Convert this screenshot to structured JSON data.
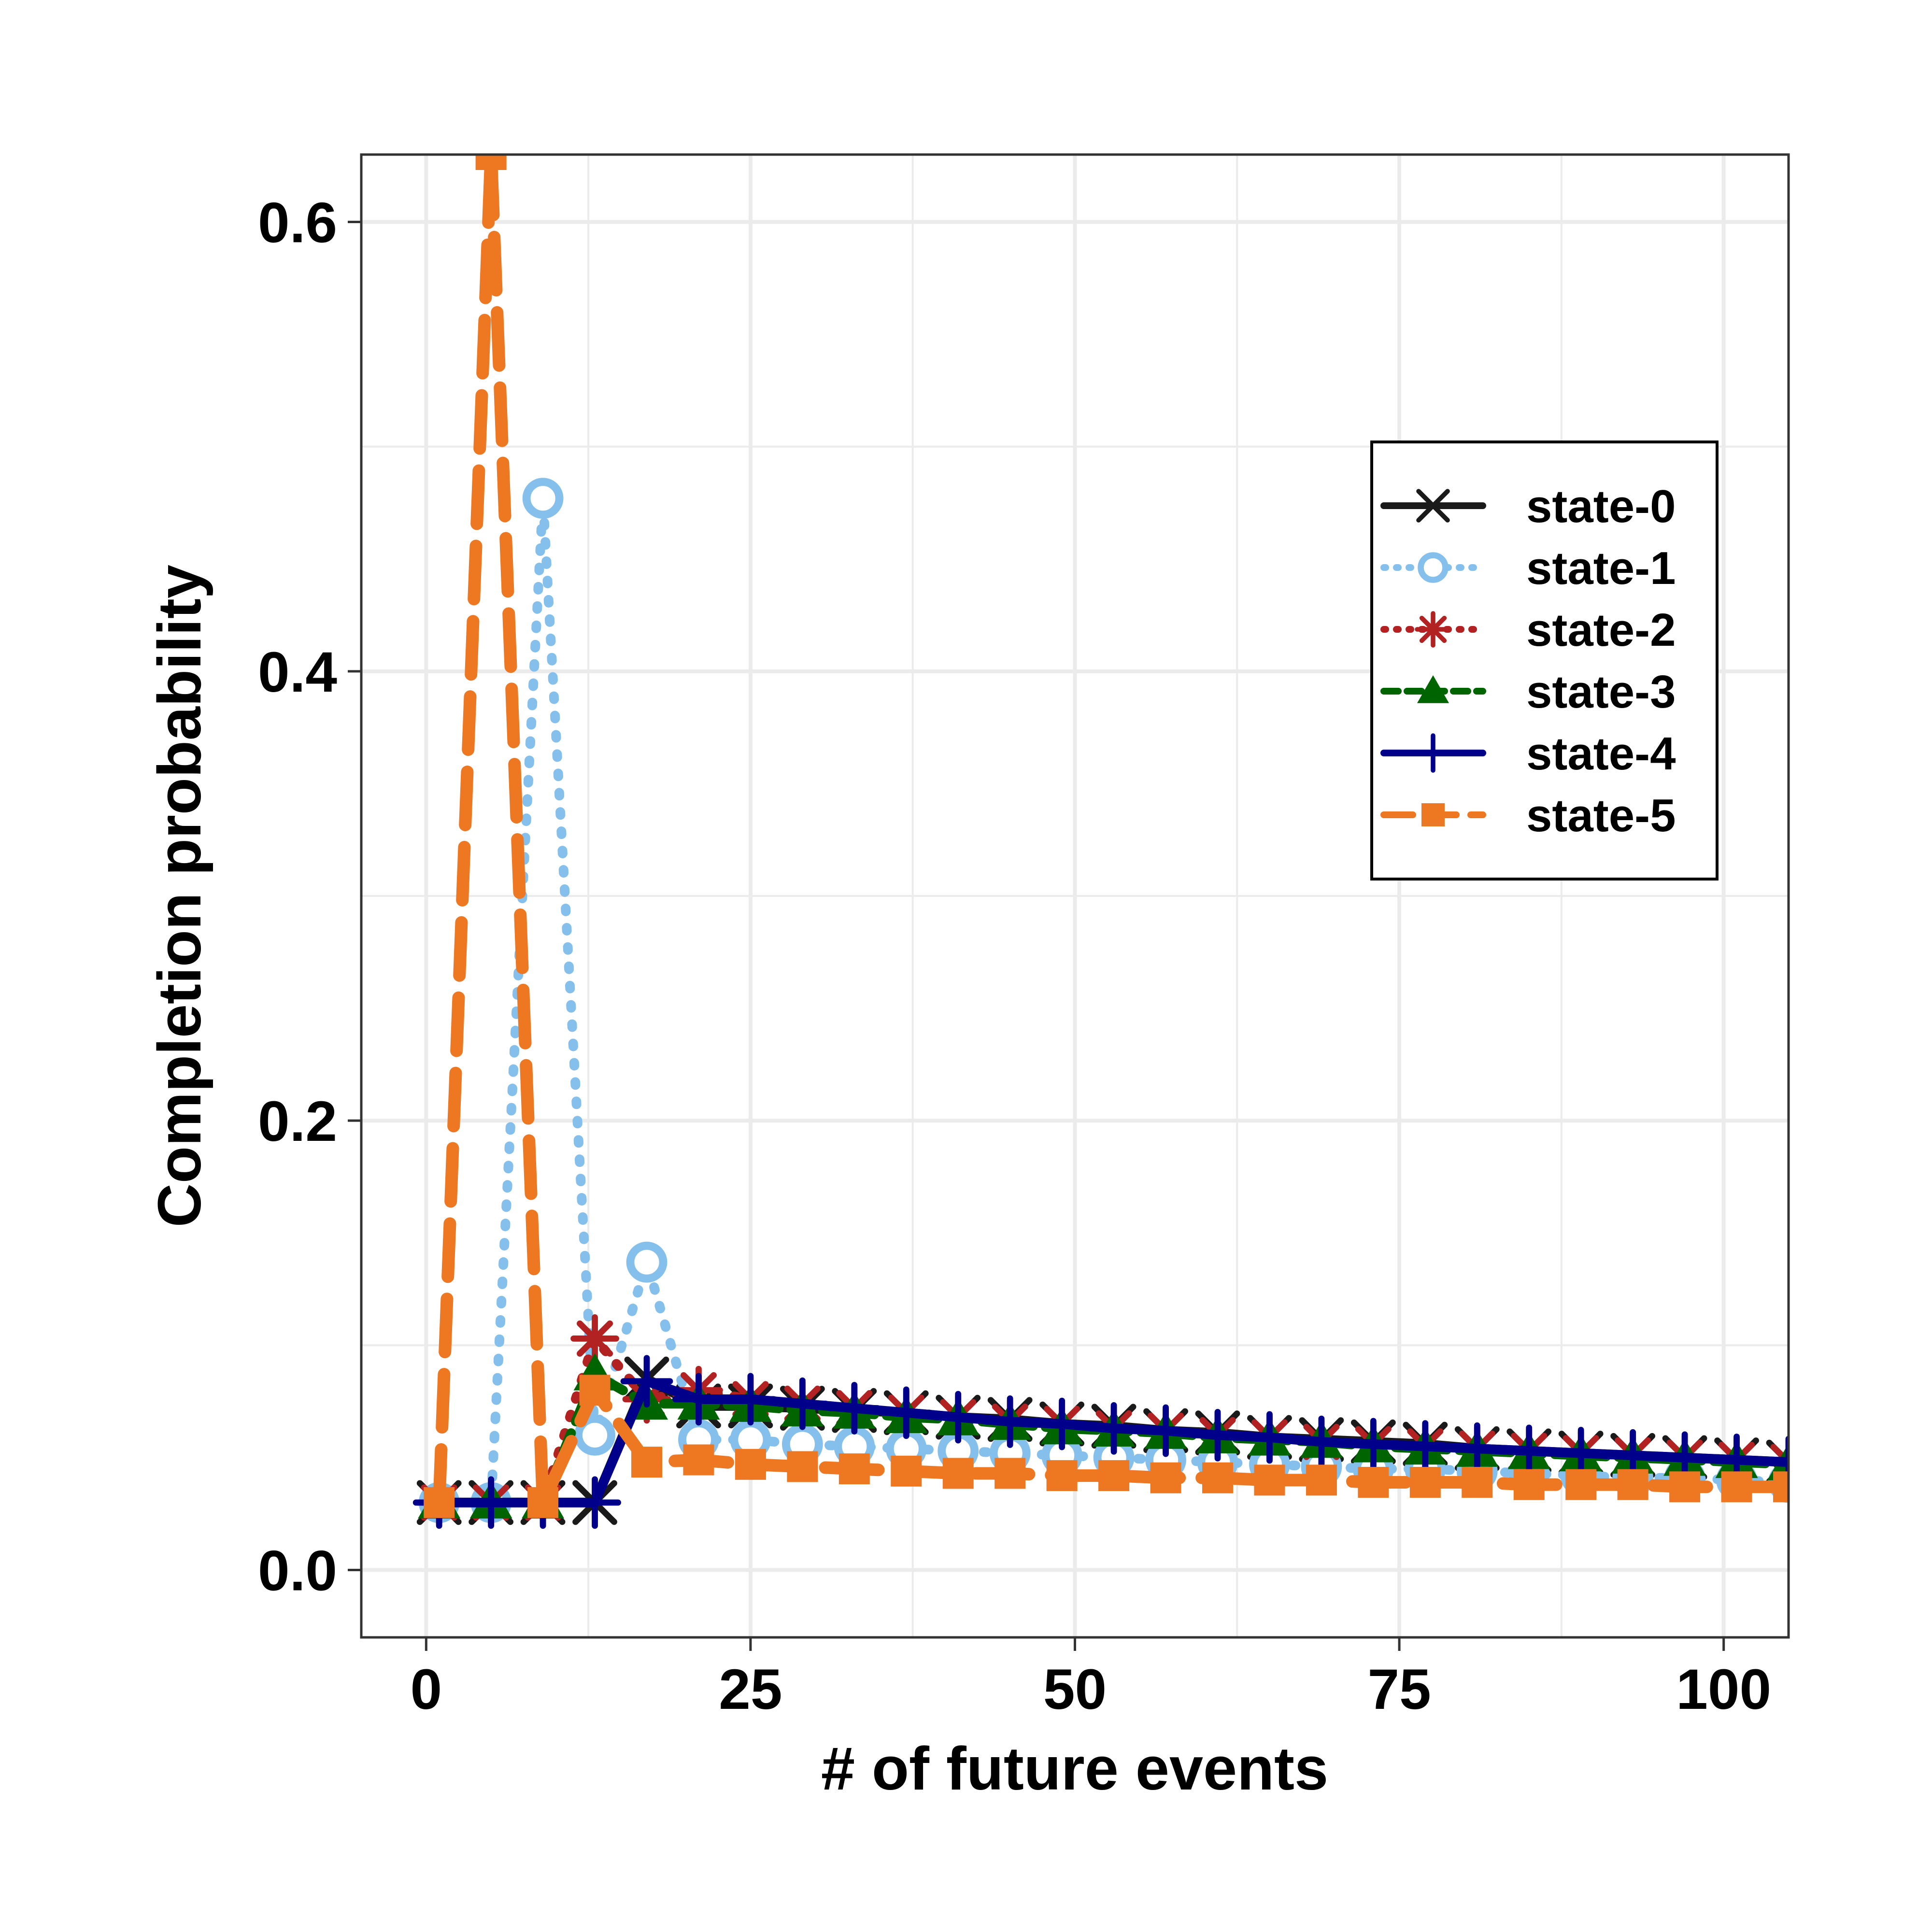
{
  "chart_data": {
    "type": "line",
    "title": "",
    "xlabel": "# of future events",
    "ylabel": "Completion probability",
    "xlim": [
      -5,
      105
    ],
    "ylim": [
      -0.03,
      0.63
    ],
    "xticks": [
      0,
      25,
      50,
      75,
      100
    ],
    "yticks": [
      0.0,
      0.2,
      0.4,
      0.6
    ],
    "xtick_labels": [
      "0",
      "25",
      "50",
      "75",
      "100"
    ],
    "ytick_labels": [
      "0.0",
      "0.2",
      "0.4",
      "0.6"
    ],
    "grid": true,
    "legend_position": "top-right",
    "x": [
      1,
      5,
      9,
      13,
      17,
      21,
      25,
      29,
      33,
      37,
      41,
      45,
      49,
      53,
      57,
      61,
      65,
      69,
      73,
      77,
      81,
      85,
      89,
      93,
      97,
      101,
      105
    ],
    "series": [
      {
        "name": "state-0",
        "color": "#1a1a1a",
        "dash": "solid",
        "marker": "x",
        "values": [
          0.03,
          0.03,
          0.03,
          0.03,
          0.085,
          0.073,
          0.073,
          0.072,
          0.071,
          0.07,
          0.068,
          0.067,
          0.065,
          0.064,
          0.062,
          0.061,
          0.059,
          0.058,
          0.057,
          0.056,
          0.054,
          0.053,
          0.052,
          0.051,
          0.05,
          0.049,
          0.048
        ]
      },
      {
        "name": "state-1",
        "color": "#85c0ec",
        "dash": "dotted",
        "marker": "open-circle",
        "values": [
          0.03,
          0.03,
          0.477,
          0.06,
          0.137,
          0.058,
          0.058,
          0.056,
          0.055,
          0.054,
          0.053,
          0.052,
          0.051,
          0.05,
          0.049,
          0.048,
          0.047,
          0.046,
          0.045,
          0.045,
          0.044,
          0.043,
          0.042,
          0.041,
          0.041,
          0.04,
          0.039
        ]
      },
      {
        "name": "state-2",
        "color": "#b22222",
        "dash": "dotted",
        "marker": "asterisk",
        "values": [
          0.03,
          0.03,
          0.03,
          0.103,
          0.076,
          0.08,
          0.076,
          0.074,
          0.072,
          0.07,
          0.068,
          0.066,
          0.065,
          0.063,
          0.062,
          0.06,
          0.059,
          0.057,
          0.056,
          0.055,
          0.054,
          0.053,
          0.052,
          0.051,
          0.05,
          0.049,
          0.048
        ]
      },
      {
        "name": "state-3",
        "color": "#006400",
        "dash": "dashed",
        "marker": "triangle",
        "values": [
          0.03,
          0.03,
          0.03,
          0.087,
          0.074,
          0.074,
          0.073,
          0.071,
          0.07,
          0.068,
          0.067,
          0.065,
          0.063,
          0.062,
          0.061,
          0.059,
          0.058,
          0.057,
          0.055,
          0.054,
          0.053,
          0.052,
          0.051,
          0.05,
          0.049,
          0.048,
          0.047
        ]
      },
      {
        "name": "state-4",
        "color": "#00008b",
        "dash": "solid",
        "marker": "plus",
        "values": [
          0.03,
          0.03,
          0.03,
          0.03,
          0.084,
          0.076,
          0.076,
          0.074,
          0.072,
          0.07,
          0.068,
          0.066,
          0.065,
          0.063,
          0.062,
          0.06,
          0.059,
          0.057,
          0.056,
          0.055,
          0.054,
          0.053,
          0.052,
          0.051,
          0.05,
          0.049,
          0.048
        ]
      },
      {
        "name": "state-5",
        "color": "#ee7722",
        "dash": "longdash",
        "marker": "square",
        "values": [
          0.03,
          0.63,
          0.03,
          0.08,
          0.048,
          0.049,
          0.047,
          0.046,
          0.045,
          0.044,
          0.043,
          0.043,
          0.042,
          0.042,
          0.041,
          0.041,
          0.04,
          0.04,
          0.039,
          0.039,
          0.039,
          0.038,
          0.038,
          0.038,
          0.037,
          0.037,
          0.037
        ]
      }
    ]
  }
}
